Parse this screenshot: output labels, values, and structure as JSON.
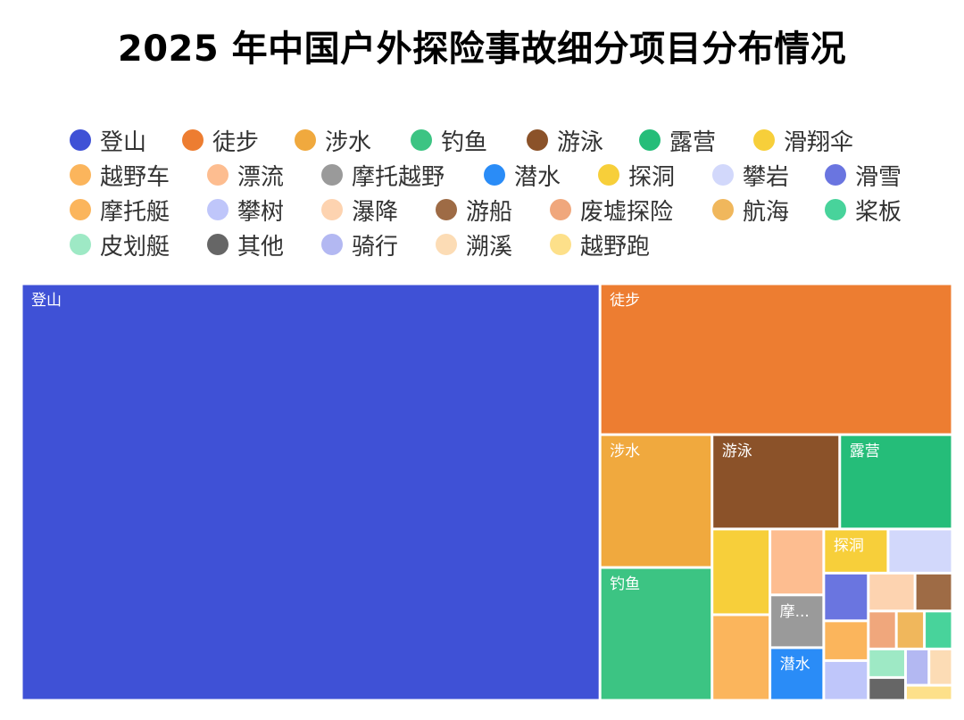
{
  "title": "2025 年中国户外探险事故细分项目分布情况",
  "chart_data": {
    "type": "treemap",
    "title": "2025 年中国户外探险事故细分项目分布情况",
    "legend_position": "top",
    "items": [
      {
        "name": "登山",
        "value": 340,
        "color": "#3f51d6",
        "label": "登山"
      },
      {
        "name": "徒步",
        "value": 75,
        "color": "#ed7d31",
        "label": "徒步"
      },
      {
        "name": "涉水",
        "value": 21,
        "color": "#f0a93e",
        "label": "涉水"
      },
      {
        "name": "钓鱼",
        "value": 21,
        "color": "#3cc483",
        "label": "钓鱼"
      },
      {
        "name": "游泳",
        "value": 17,
        "color": "#8b5229",
        "label": "游泳"
      },
      {
        "name": "露营",
        "value": 15,
        "color": "#25bd79",
        "label": "露营"
      },
      {
        "name": "滑翔伞",
        "value": 7,
        "color": "#f7cf3a",
        "label": ""
      },
      {
        "name": "越野车",
        "value": 7,
        "color": "#fbb55c",
        "label": ""
      },
      {
        "name": "漂流",
        "value": 5,
        "color": "#fdbd90",
        "label": ""
      },
      {
        "name": "摩托越野",
        "value": 4,
        "color": "#9a9a9a",
        "label": "摩..."
      },
      {
        "name": "潜水",
        "value": 4,
        "color": "#2a8cf7",
        "label": "潜水"
      },
      {
        "name": "探洞",
        "value": 4,
        "color": "#f7cf3a",
        "label": "探洞"
      },
      {
        "name": "攀岩",
        "value": 4,
        "color": "#d2d8fb",
        "label": ""
      },
      {
        "name": "滑雪",
        "value": 3,
        "color": "#6a75e0",
        "label": ""
      },
      {
        "name": "摩托艇",
        "value": 2.5,
        "color": "#fbb55c",
        "label": ""
      },
      {
        "name": "攀树",
        "value": 2.5,
        "color": "#bfc6fa",
        "label": ""
      },
      {
        "name": "瀑降",
        "value": 2.5,
        "color": "#fdd3b0",
        "label": ""
      },
      {
        "name": "游船",
        "value": 2,
        "color": "#9e6b45",
        "label": ""
      },
      {
        "name": "废墟探险",
        "value": 1.5,
        "color": "#f0a77c",
        "label": ""
      },
      {
        "name": "航海",
        "value": 1.5,
        "color": "#f0b75c",
        "label": ""
      },
      {
        "name": "桨板",
        "value": 1.5,
        "color": "#48d39b",
        "label": ""
      },
      {
        "name": "皮划艇",
        "value": 1.5,
        "color": "#9ee9c5",
        "label": ""
      },
      {
        "name": "其他",
        "value": 1.2,
        "color": "#666666",
        "label": ""
      },
      {
        "name": "骑行",
        "value": 1.2,
        "color": "#b3b8f2",
        "label": ""
      },
      {
        "name": "溯溪",
        "value": 1.2,
        "color": "#fcdcb5",
        "label": ""
      },
      {
        "name": "越野跑",
        "value": 1,
        "color": "#fde08a",
        "label": ""
      }
    ]
  }
}
